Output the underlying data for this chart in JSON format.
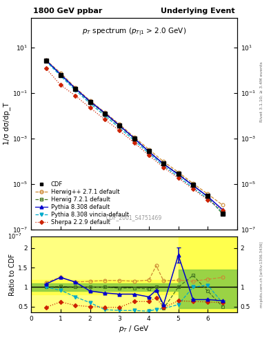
{
  "title_left": "1800 GeV ppbar",
  "title_right": "Underlying Event",
  "main_title": "$p_T$ spectrum ($p_{T|1}$ > 2.0 GeV)",
  "xlabel": "$p_T$ / GeV",
  "ylabel_main": "1/σ dσ/dp_T",
  "ylabel_ratio": "Ratio to CDF",
  "right_label_top": "Rivet 3.1.10; ≥ 3.4M events",
  "right_label_bot": "mcplots.cern.ch [arXiv:1306.3436]",
  "dataset_label": "CDF_2001_S4751469",
  "xc": [
    0.5,
    1.0,
    1.5,
    2.0,
    2.5,
    3.0,
    3.5,
    4.0,
    4.5,
    5.0,
    5.5,
    6.0,
    6.5
  ],
  "cdf_y": [
    2.5,
    0.6,
    0.15,
    0.04,
    0.012,
    0.0036,
    0.001,
    0.00028,
    8.2e-05,
    2.8e-05,
    9e-06,
    3e-06,
    4.8e-07
  ],
  "cdf_yerr_lo": [
    0.18,
    0.05,
    0.012,
    0.003,
    0.001,
    0.0003,
    9e-05,
    2.5e-05,
    7e-06,
    2.5e-06,
    8e-07,
    3e-07,
    6e-08
  ],
  "cdf_yerr_hi": [
    0.18,
    0.05,
    0.012,
    0.003,
    0.001,
    0.0003,
    9e-05,
    2.5e-05,
    7e-06,
    2.5e-06,
    8e-07,
    3e-07,
    6e-08
  ],
  "herwig_pp_y": [
    2.8,
    0.75,
    0.17,
    0.046,
    0.014,
    0.0042,
    0.00115,
    0.00033,
    9.5e-05,
    3.3e-05,
    1.05e-05,
    3.6e-06,
    1.2e-06
  ],
  "herwig7_y": [
    2.5,
    0.62,
    0.15,
    0.04,
    0.012,
    0.0035,
    0.00098,
    0.00027,
    7.5e-05,
    2.8e-05,
    8.8e-06,
    2.7e-06,
    4.8e-07
  ],
  "pythia8_y": [
    2.7,
    0.65,
    0.155,
    0.042,
    0.013,
    0.0037,
    0.00102,
    0.00026,
    7.5e-05,
    2.6e-05,
    8.5e-06,
    2.8e-06,
    7.5e-07
  ],
  "pythia8v_y": [
    2.5,
    0.55,
    0.13,
    0.034,
    0.01,
    0.0029,
    0.00082,
    0.00022,
    6.2e-05,
    2.1e-05,
    6.8e-06,
    2.2e-06,
    5.8e-07
  ],
  "sherpa_y": [
    1.2,
    0.22,
    0.075,
    0.022,
    0.0068,
    0.0022,
    0.00065,
    0.00018,
    5.3e-05,
    1.8e-05,
    6e-06,
    2e-06,
    6.8e-07
  ],
  "ratio_x": [
    0.5,
    1.0,
    1.5,
    2.0,
    2.5,
    3.0,
    3.5,
    4.0,
    4.25,
    4.5,
    5.0,
    5.5,
    6.0,
    6.5
  ],
  "ratio_herwig_pp": [
    1.12,
    1.25,
    1.13,
    1.15,
    1.17,
    1.17,
    1.15,
    1.18,
    1.55,
    1.16,
    1.18,
    1.15,
    1.2,
    1.25
  ],
  "ratio_herwig7": [
    1.0,
    1.02,
    1.0,
    1.0,
    1.0,
    0.97,
    0.98,
    0.95,
    1.0,
    0.45,
    1.0,
    1.3,
    0.9,
    0.5
  ],
  "ratio_pythia8": [
    1.08,
    1.25,
    1.13,
    0.9,
    0.85,
    0.82,
    0.82,
    0.75,
    0.92,
    0.55,
    1.82,
    0.68,
    0.68,
    0.65
  ],
  "ratio_pythia8v": [
    1.0,
    0.92,
    0.75,
    0.6,
    0.42,
    0.4,
    0.4,
    0.38,
    0.43,
    0.45,
    0.55,
    1.0,
    1.05,
    0.6
  ],
  "ratio_sherpa": [
    0.48,
    0.62,
    0.53,
    0.5,
    0.48,
    0.48,
    0.63,
    0.63,
    0.73,
    0.47,
    0.65,
    0.63,
    0.62,
    0.6
  ],
  "ratio_pythia8_errhi": [
    0.0,
    0.0,
    0.0,
    0.0,
    0.0,
    0.0,
    0.0,
    0.0,
    0.0,
    0.0,
    0.2,
    0.0,
    0.0,
    0.0
  ],
  "ratio_pythia8_errlo": [
    0.0,
    0.0,
    0.0,
    0.0,
    0.0,
    0.0,
    0.0,
    0.0,
    0.0,
    0.0,
    0.2,
    0.0,
    0.0,
    0.0
  ],
  "colors": {
    "cdf": "#000000",
    "herwig_pp": "#cc8833",
    "herwig7": "#447722",
    "pythia8": "#0000cc",
    "pythia8v": "#00aacc",
    "sherpa": "#cc2200"
  },
  "xlim": [
    0,
    7.0
  ],
  "ylim_main": [
    1e-07,
    200
  ],
  "ylim_ratio": [
    0.35,
    2.3
  ]
}
